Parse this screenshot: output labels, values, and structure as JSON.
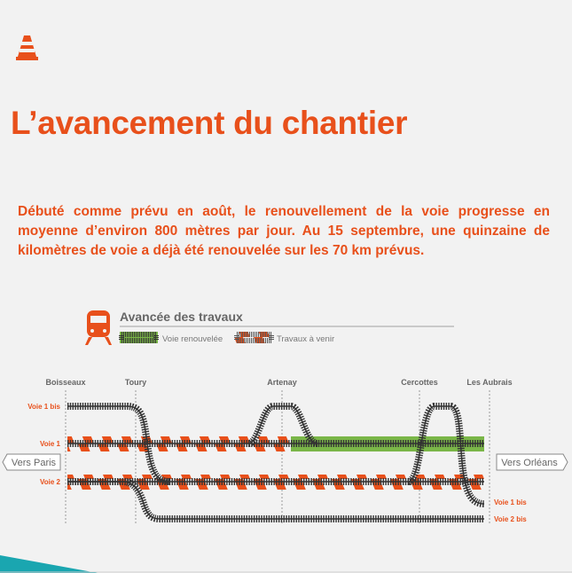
{
  "slide": {
    "title": "L’avancement du chantier",
    "intro": "Débuté comme prévu en août, le renouvellement de la voie progresse en moyenne d’environ 800 mètres par jour. Au 15 septembre, une quinzaine de kilomètres de voie a déjà été renouvelée sur les 70 km prévus."
  },
  "diagram": {
    "heading": "Avancée des travaux",
    "legend": {
      "done": "Voie renouvelée",
      "todo": "Travaux à venir"
    },
    "stations": [
      "Boisseaux",
      "Toury",
      "Artenay",
      "Cercottes",
      "Les Aubrais"
    ],
    "tracks_left": [
      "Voie 1 bis",
      "Voie 1",
      "Voie 2"
    ],
    "tracks_right": [
      "Voie 1 bis",
      "Voie 2 bis"
    ],
    "dir_left": "Vers Paris",
    "dir_right": "Vers Orléans"
  },
  "colors": {
    "accent": "#e8501b",
    "renewed": "#7ab648",
    "track": "#333333",
    "teal": "#1aa6b0"
  },
  "icons": [
    "traffic-cone-icon",
    "train-icon"
  ]
}
